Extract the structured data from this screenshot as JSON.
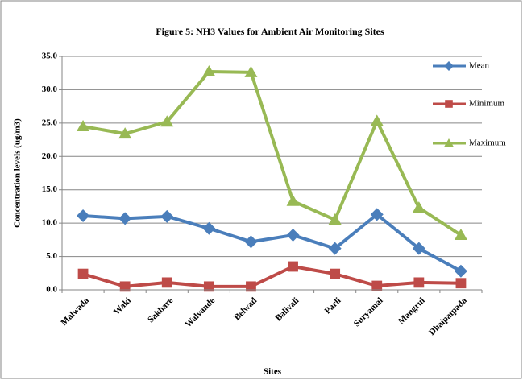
{
  "chart_data": {
    "type": "line",
    "title": "Figure 5: NH3 Values for Ambient Air Monitoring Sites",
    "x_label": "Sites",
    "y_label": "Concentration levels (ug/m3)",
    "categories": [
      "Malwada",
      "Waki",
      "Sakhare",
      "Walvande",
      "Belwad",
      "Balivali",
      "Parli",
      "Suryamal",
      "Mangrul",
      "Dhaipatpada"
    ],
    "series": [
      {
        "name": "Mean",
        "color": "#4a7ebb",
        "marker": "diamond",
        "values": [
          11.1,
          10.7,
          11.0,
          9.2,
          7.2,
          8.2,
          6.2,
          11.3,
          6.2,
          2.8
        ]
      },
      {
        "name": "Minimum",
        "color": "#be4b48",
        "marker": "square",
        "values": [
          2.4,
          0.5,
          1.1,
          0.5,
          0.5,
          3.5,
          2.4,
          0.6,
          1.1,
          1.0
        ]
      },
      {
        "name": "Maximum",
        "color": "#98b954",
        "marker": "triangle",
        "values": [
          24.5,
          23.4,
          25.2,
          32.7,
          32.6,
          13.3,
          10.5,
          25.3,
          12.3,
          8.2
        ]
      }
    ],
    "ylim": [
      0,
      35
    ],
    "yticks": [
      {
        "value": 0,
        "label": "0.0"
      },
      {
        "value": 5,
        "label": "5.0"
      },
      {
        "value": 10,
        "label": "10.0"
      },
      {
        "value": 15,
        "label": "15.0"
      },
      {
        "value": 20,
        "label": "20.0"
      },
      {
        "value": 25,
        "label": "25.0"
      },
      {
        "value": 30,
        "label": "30.0"
      },
      {
        "value": 35,
        "label": "35.0"
      }
    ],
    "grid": true,
    "legend": "right"
  }
}
